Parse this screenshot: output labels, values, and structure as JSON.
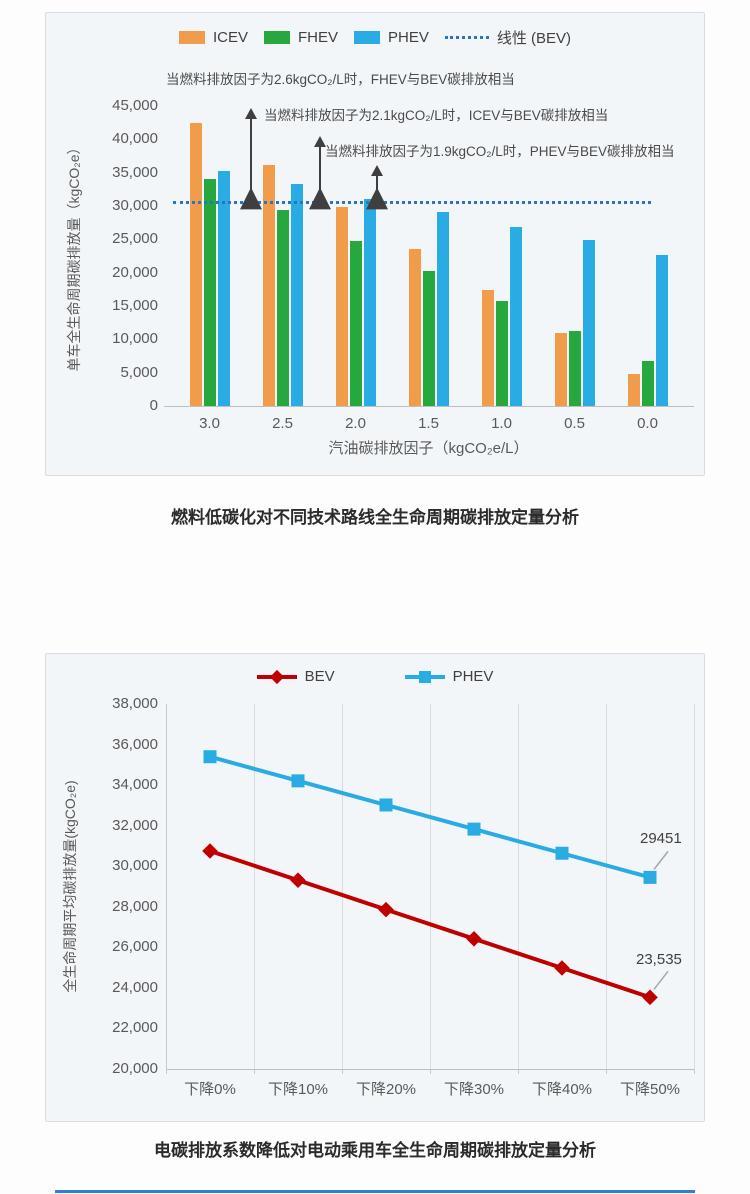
{
  "captions": {
    "chart1": "燃料低碳化对不同技术路线全生命周期碳排放定量分析",
    "chart2": "电碳排放系数降低对电动乘用车全生命周期碳排放定量分析"
  },
  "footer": {
    "accent_color": "#2f7fd8"
  },
  "chart_data": [
    {
      "type": "bar",
      "title": "",
      "categories": [
        "3.0",
        "2.5",
        "2.0",
        "1.5",
        "1.0",
        "0.5",
        "0.0"
      ],
      "series": [
        {
          "name": "ICEV",
          "color": "#f09c4b",
          "values": [
            42400,
            36100,
            29900,
            23600,
            17400,
            11000,
            4800
          ]
        },
        {
          "name": "FHEV",
          "color": "#27a83e",
          "values": [
            34000,
            29400,
            24800,
            20300,
            15700,
            11200,
            6800
          ]
        },
        {
          "name": "PHEV",
          "color": "#29abe3",
          "values": [
            35300,
            33300,
            31100,
            29100,
            26900,
            24900,
            22700
          ]
        }
      ],
      "baseline": {
        "label": "线性 (BEV)",
        "value": 30700,
        "color": "#2e74bd",
        "style": "dotted"
      },
      "annotations": [
        {
          "text": "当燃料排放因子为2.6kgCO₂/L时，FHEV与BEV碳排放相当",
          "factor": 2.6
        },
        {
          "text": "当燃料排放因子为2.1kgCO₂/L时，ICEV与BEV碳排放相当",
          "factor": 2.1
        },
        {
          "text": "当燃料排放因子为1.9kgCO₂/L时，PHEV与BEV碳排放相当",
          "factor": 1.9
        }
      ],
      "xlabel": "汽油碳排放因子（kgCO₂e/L）",
      "ylabel": "单车全生命周期碳排放量（kgCO₂e）",
      "ylim": [
        0,
        45000
      ],
      "ytick_labels": [
        "45,000",
        "40,000",
        "35,000",
        "30,000",
        "25,000",
        "20,000",
        "15,000",
        "10,000",
        "5,000",
        "0"
      ],
      "grid": "none",
      "legend_position": "top"
    },
    {
      "type": "line",
      "title": "",
      "categories": [
        "下降0%",
        "下降10%",
        "下降20%",
        "下降30%",
        "下降40%",
        "下降50%"
      ],
      "series": [
        {
          "name": "BEV",
          "color": "#c00000",
          "marker": "diamond",
          "values": [
            30750,
            29310,
            27860,
            26420,
            24980,
            23535
          ],
          "end_label": "23,535"
        },
        {
          "name": "PHEV",
          "color": "#29abe3",
          "marker": "square",
          "values": [
            35400,
            34210,
            33020,
            31830,
            30640,
            29451
          ],
          "end_label": "29451"
        }
      ],
      "xlabel": "",
      "ylabel": "全生命周期平均碳排放量(kgCO₂e)",
      "ylim": [
        20000,
        38000
      ],
      "ytick_labels": [
        "38,000",
        "36,000",
        "34,000",
        "32,000",
        "30,000",
        "28,000",
        "26,000",
        "24,000",
        "22,000",
        "20,000"
      ],
      "grid": "vertical",
      "legend_position": "top"
    }
  ]
}
